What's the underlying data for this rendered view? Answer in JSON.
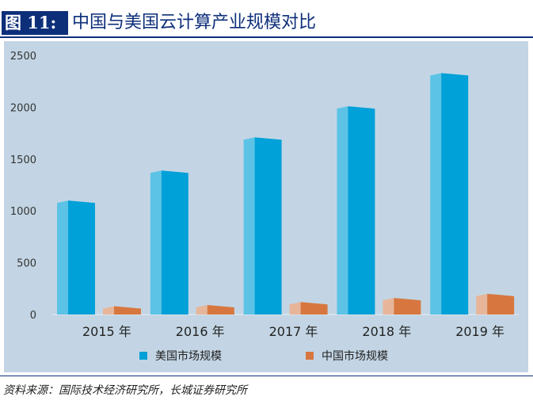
{
  "figure": {
    "label": "图 11:",
    "title": "中国与美国云计算产业规模对比",
    "source": "资料来源：国际技术经济研究所，长城证券研究所"
  },
  "colors": {
    "us_front": "#00a0d8",
    "us_side": "#5cc3e6",
    "cn_front": "#d7773f",
    "cn_side": "#e7b69a",
    "background": "#c3d5e4",
    "title_blue": "#0d2f7a"
  },
  "chart_data": {
    "type": "bar",
    "title": "中国与美国云计算产业规模对比",
    "categories": [
      "2015 年",
      "2016 年",
      "2017 年",
      "2018 年",
      "2019 年"
    ],
    "series": [
      {
        "name": "美国市场规模",
        "values": [
          1100,
          1390,
          1710,
          2010,
          2330
        ]
      },
      {
        "name": "中国市场规模",
        "values": [
          80,
          92,
          120,
          160,
          200
        ]
      }
    ],
    "yticks": [
      0,
      500,
      1000,
      1500,
      2000,
      2500
    ],
    "ylim": [
      0,
      2500
    ],
    "xlabel": "",
    "ylabel": "",
    "legend": "bottom-center"
  }
}
